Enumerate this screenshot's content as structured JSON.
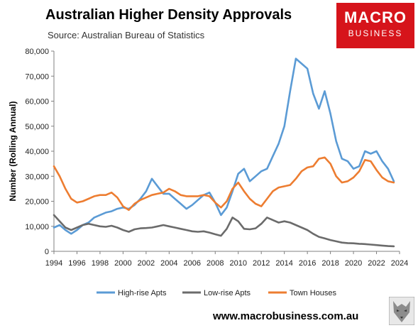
{
  "header": {
    "title": "Australian Higher Density Approvals",
    "subtitle": "Source: Australian Bureau of Statistics"
  },
  "logo": {
    "line1": "MACRO",
    "line2": "BUSINESS",
    "color": "#d6141b"
  },
  "footer": {
    "url": "www.macrobusiness.com.au"
  },
  "chart_data": {
    "type": "line",
    "title": "Australian Higher Density Approvals",
    "ylabel": "Number (Rolling Annual)",
    "xlabel": "",
    "xlim": [
      1994,
      2024
    ],
    "ylim": [
      0,
      80000
    ],
    "x_ticks": [
      "1994",
      "1996",
      "1998",
      "2000",
      "2002",
      "2004",
      "2006",
      "2008",
      "2010",
      "2012",
      "2014",
      "2016",
      "2018",
      "2020",
      "2022",
      "2024"
    ],
    "y_ticks": [
      "0",
      "10,000",
      "20,000",
      "30,000",
      "40,000",
      "50,000",
      "60,000",
      "70,000",
      "80,000"
    ],
    "grid": false,
    "legend_position": "bottom",
    "series": [
      {
        "name": "High-rise Apts",
        "color": "#5b9bd5",
        "points": [
          [
            1994.0,
            9500
          ],
          [
            1994.5,
            10500
          ],
          [
            1995.0,
            8500
          ],
          [
            1995.5,
            7000
          ],
          [
            1996.0,
            8500
          ],
          [
            1996.5,
            10500
          ],
          [
            1997.0,
            11500
          ],
          [
            1997.5,
            13500
          ],
          [
            1998.0,
            14500
          ],
          [
            1998.5,
            15500
          ],
          [
            1999.0,
            16000
          ],
          [
            1999.5,
            17000
          ],
          [
            2000.0,
            17500
          ],
          [
            2000.5,
            17000
          ],
          [
            2001.0,
            18500
          ],
          [
            2001.5,
            21000
          ],
          [
            2002.0,
            24000
          ],
          [
            2002.5,
            29000
          ],
          [
            2003.0,
            26000
          ],
          [
            2003.5,
            23000
          ],
          [
            2004.0,
            23000
          ],
          [
            2004.5,
            21000
          ],
          [
            2005.0,
            19000
          ],
          [
            2005.5,
            17000
          ],
          [
            2006.0,
            18500
          ],
          [
            2006.5,
            20500
          ],
          [
            2007.0,
            22500
          ],
          [
            2007.5,
            23500
          ],
          [
            2008.0,
            19500
          ],
          [
            2008.5,
            14500
          ],
          [
            2009.0,
            17500
          ],
          [
            2009.5,
            24000
          ],
          [
            2010.0,
            31000
          ],
          [
            2010.5,
            33000
          ],
          [
            2011.0,
            28000
          ],
          [
            2011.5,
            30000
          ],
          [
            2012.0,
            32000
          ],
          [
            2012.5,
            33000
          ],
          [
            2013.0,
            38000
          ],
          [
            2013.5,
            43000
          ],
          [
            2014.0,
            50000
          ],
          [
            2014.5,
            64000
          ],
          [
            2015.0,
            77000
          ],
          [
            2015.5,
            75000
          ],
          [
            2016.0,
            73000
          ],
          [
            2016.5,
            63000
          ],
          [
            2017.0,
            57000
          ],
          [
            2017.5,
            64000
          ],
          [
            2018.0,
            55000
          ],
          [
            2018.5,
            44000
          ],
          [
            2019.0,
            37000
          ],
          [
            2019.5,
            36000
          ],
          [
            2020.0,
            33000
          ],
          [
            2020.5,
            34000
          ],
          [
            2021.0,
            40000
          ],
          [
            2021.5,
            39000
          ],
          [
            2022.0,
            40000
          ],
          [
            2022.5,
            36000
          ],
          [
            2023.0,
            33000
          ],
          [
            2023.5,
            28000
          ]
        ]
      },
      {
        "name": "Low-rise Apts",
        "color": "#6b6b6b",
        "points": [
          [
            1994.0,
            14500
          ],
          [
            1994.5,
            12000
          ],
          [
            1995.0,
            9500
          ],
          [
            1995.5,
            8500
          ],
          [
            1996.0,
            9500
          ],
          [
            1996.5,
            10500
          ],
          [
            1997.0,
            11000
          ],
          [
            1997.5,
            10500
          ],
          [
            1998.0,
            10000
          ],
          [
            1998.5,
            9800
          ],
          [
            1999.0,
            10200
          ],
          [
            1999.5,
            9500
          ],
          [
            2000.0,
            8500
          ],
          [
            2000.5,
            7800
          ],
          [
            2001.0,
            8800
          ],
          [
            2001.5,
            9200
          ],
          [
            2002.0,
            9300
          ],
          [
            2002.5,
            9500
          ],
          [
            2003.0,
            10000
          ],
          [
            2003.5,
            10500
          ],
          [
            2004.0,
            10000
          ],
          [
            2004.5,
            9500
          ],
          [
            2005.0,
            9000
          ],
          [
            2005.5,
            8500
          ],
          [
            2006.0,
            8000
          ],
          [
            2006.5,
            7800
          ],
          [
            2007.0,
            8000
          ],
          [
            2007.5,
            7500
          ],
          [
            2008.0,
            6800
          ],
          [
            2008.5,
            6200
          ],
          [
            2009.0,
            9000
          ],
          [
            2009.5,
            13500
          ],
          [
            2010.0,
            12000
          ],
          [
            2010.5,
            9000
          ],
          [
            2011.0,
            8800
          ],
          [
            2011.5,
            9200
          ],
          [
            2012.0,
            11000
          ],
          [
            2012.5,
            13500
          ],
          [
            2013.0,
            12500
          ],
          [
            2013.5,
            11500
          ],
          [
            2014.0,
            12000
          ],
          [
            2014.5,
            11500
          ],
          [
            2015.0,
            10500
          ],
          [
            2015.5,
            9500
          ],
          [
            2016.0,
            8500
          ],
          [
            2016.5,
            7000
          ],
          [
            2017.0,
            5800
          ],
          [
            2017.5,
            5200
          ],
          [
            2018.0,
            4500
          ],
          [
            2018.5,
            4000
          ],
          [
            2019.0,
            3500
          ],
          [
            2019.5,
            3300
          ],
          [
            2020.0,
            3200
          ],
          [
            2020.5,
            3000
          ],
          [
            2021.0,
            2900
          ],
          [
            2021.5,
            2700
          ],
          [
            2022.0,
            2500
          ],
          [
            2022.5,
            2300
          ],
          [
            2023.0,
            2100
          ],
          [
            2023.5,
            2000
          ]
        ]
      },
      {
        "name": "Town Houses",
        "color": "#ed7d31",
        "points": [
          [
            1994.0,
            34000
          ],
          [
            1994.5,
            30000
          ],
          [
            1995.0,
            25000
          ],
          [
            1995.5,
            21000
          ],
          [
            1996.0,
            19500
          ],
          [
            1996.5,
            20000
          ],
          [
            1997.0,
            21000
          ],
          [
            1997.5,
            22000
          ],
          [
            1998.0,
            22500
          ],
          [
            1998.5,
            22500
          ],
          [
            1999.0,
            23500
          ],
          [
            1999.5,
            21500
          ],
          [
            2000.0,
            18000
          ],
          [
            2000.5,
            16500
          ],
          [
            2001.0,
            19000
          ],
          [
            2001.5,
            20500
          ],
          [
            2002.0,
            21500
          ],
          [
            2002.5,
            22500
          ],
          [
            2003.0,
            23000
          ],
          [
            2003.5,
            23500
          ],
          [
            2004.0,
            25000
          ],
          [
            2004.5,
            24000
          ],
          [
            2005.0,
            22500
          ],
          [
            2005.5,
            22000
          ],
          [
            2006.0,
            22000
          ],
          [
            2006.5,
            22000
          ],
          [
            2007.0,
            22500
          ],
          [
            2007.5,
            22000
          ],
          [
            2008.0,
            19500
          ],
          [
            2008.5,
            17500
          ],
          [
            2009.0,
            20000
          ],
          [
            2009.5,
            25000
          ],
          [
            2010.0,
            27500
          ],
          [
            2010.5,
            24000
          ],
          [
            2011.0,
            21000
          ],
          [
            2011.5,
            19000
          ],
          [
            2012.0,
            18000
          ],
          [
            2012.5,
            21000
          ],
          [
            2013.0,
            24000
          ],
          [
            2013.5,
            25500
          ],
          [
            2014.0,
            26000
          ],
          [
            2014.5,
            26500
          ],
          [
            2015.0,
            29000
          ],
          [
            2015.5,
            32000
          ],
          [
            2016.0,
            33500
          ],
          [
            2016.5,
            34000
          ],
          [
            2017.0,
            37000
          ],
          [
            2017.5,
            37500
          ],
          [
            2018.0,
            35000
          ],
          [
            2018.5,
            30000
          ],
          [
            2019.0,
            27500
          ],
          [
            2019.5,
            28000
          ],
          [
            2020.0,
            29500
          ],
          [
            2020.5,
            32000
          ],
          [
            2021.0,
            36500
          ],
          [
            2021.5,
            36000
          ],
          [
            2022.0,
            32500
          ],
          [
            2022.5,
            29500
          ],
          [
            2023.0,
            28000
          ],
          [
            2023.5,
            27500
          ]
        ]
      }
    ]
  }
}
